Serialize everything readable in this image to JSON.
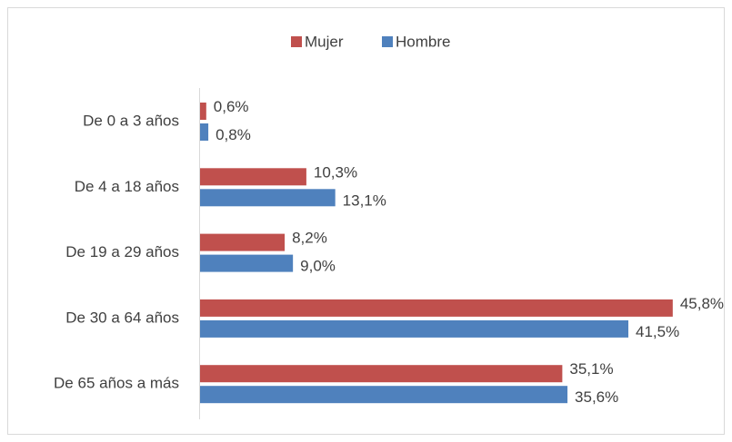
{
  "chart_data": {
    "type": "hbar",
    "categories": [
      "De 0 a 3 años",
      "De 4 a 18 años",
      "De 19 a 29 años",
      "De 30 a 64 años",
      "De 65 años a más"
    ],
    "series": [
      {
        "name": "Mujer",
        "color": "#c0504d",
        "values": [
          0.6,
          10.3,
          8.2,
          45.8,
          35.1
        ],
        "value_labels": [
          "0,6%",
          "10,3%",
          "8,2%",
          "45,8%",
          "35,1%"
        ]
      },
      {
        "name": "Hombre",
        "color": "#4f81bd",
        "values": [
          0.8,
          13.1,
          9.0,
          41.5,
          35.6
        ],
        "value_labels": [
          "0,8%",
          "13,1%",
          "9,0%",
          "41,5%",
          "35,6%"
        ]
      }
    ],
    "legend": "top"
  }
}
